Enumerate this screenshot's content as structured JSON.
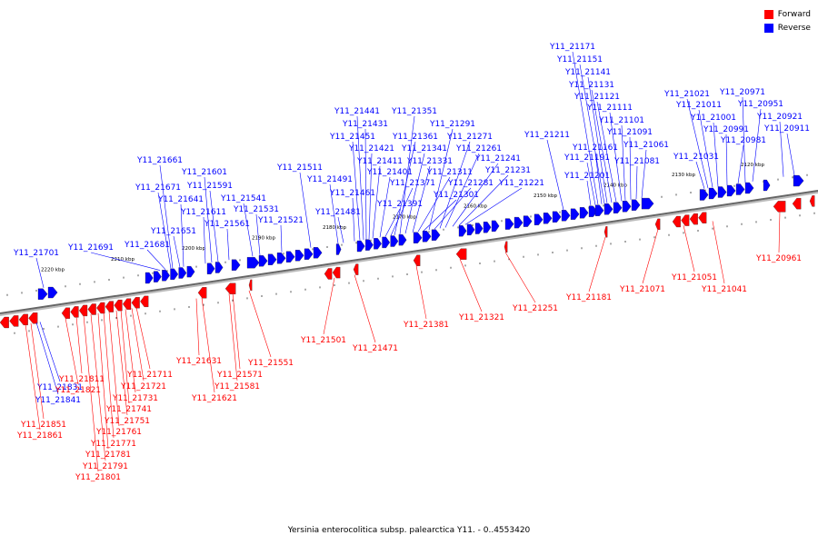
{
  "legend": {
    "forward_label": "Forward",
    "reverse_label": "Reverse",
    "forward_color": "#ff0000",
    "reverse_color": "#0000ff"
  },
  "caption": "Yersinia enterocolitica subsp. palearctica Y11. - 0..4553420",
  "colors": {
    "axis": "#666666",
    "forward": "#ff0000",
    "reverse": "#0000ff"
  },
  "scale_labels": [
    "2220 kbp",
    "2210 kbp",
    "2200 kbp",
    "2190 kbp",
    "2180 kbp",
    "2170 kbp",
    "2160 kbp",
    "2150 kbp",
    "2140 kbp",
    "2130 kbp",
    "2120 kbp"
  ],
  "reverse_genes": [
    "Y11_21701",
    "Y11_21691",
    "Y11_21681",
    "Y11_21671",
    "Y11_21661",
    "Y11_21651",
    "Y11_21641",
    "Y11_21611",
    "Y11_21601",
    "Y11_21591",
    "Y11_21561",
    "Y11_21541",
    "Y11_21531",
    "Y11_21521",
    "Y11_21511",
    "Y11_21491",
    "Y11_21481",
    "Y11_21461",
    "Y11_21451",
    "Y11_21441",
    "Y11_21431",
    "Y11_21421",
    "Y11_21411",
    "Y11_21401",
    "Y11_21391",
    "Y11_21371",
    "Y11_21361",
    "Y11_21351",
    "Y11_21341",
    "Y11_21331",
    "Y11_21311",
    "Y11_21301",
    "Y11_21291",
    "Y11_21281",
    "Y11_21271",
    "Y11_21261",
    "Y11_21241",
    "Y11_21231",
    "Y11_21221",
    "Y11_21211",
    "Y11_21201",
    "Y11_21191",
    "Y11_21171",
    "Y11_21161",
    "Y11_21151",
    "Y11_21141",
    "Y11_21131",
    "Y11_21121",
    "Y11_21111",
    "Y11_21101",
    "Y11_21091",
    "Y11_21081",
    "Y11_21061",
    "Y11_21031",
    "Y11_21021",
    "Y11_21011",
    "Y11_21001",
    "Y11_20991",
    "Y11_20981",
    "Y11_20971",
    "Y11_20951",
    "Y11_20921",
    "Y11_20911",
    "Y11_21841",
    "Y11_21831"
  ],
  "forward_genes_top": [
    "Y11_20961",
    "Y11_21041",
    "Y11_21051",
    "Y11_21071",
    "Y11_21181",
    "Y11_21251",
    "Y11_21321",
    "Y11_21381",
    "Y11_21471",
    "Y11_21501",
    "Y11_21551",
    "Y11_21571",
    "Y11_21581",
    "Y11_21621",
    "Y11_21631"
  ],
  "forward_genes_bottom": [
    "Y11_21711",
    "Y11_21721",
    "Y11_21731",
    "Y11_21741",
    "Y11_21751",
    "Y11_21761",
    "Y11_21771",
    "Y11_21781",
    "Y11_21791",
    "Y11_21801",
    "Y11_21811",
    "Y11_21821",
    "Y11_21851",
    "Y11_21861"
  ]
}
